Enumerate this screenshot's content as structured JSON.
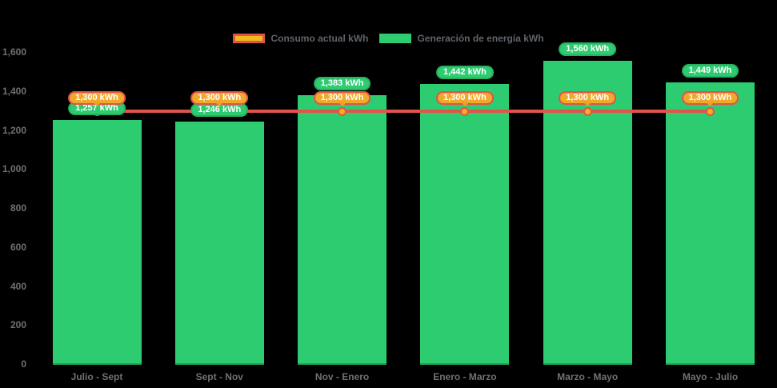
{
  "chart_data": {
    "type": "bar",
    "title": "",
    "categories": [
      "Julio - Sept",
      "Sept - Nov",
      "Nov - Enero",
      "Enero - Marzo",
      "Marzo - Mayo",
      "Mayo - Julio"
    ],
    "series": [
      {
        "name": "Consumo actual kWh",
        "type": "line",
        "values": [
          1300,
          1300,
          1300,
          1300,
          1300,
          1300
        ],
        "point_labels": [
          "1,300 kWh",
          "1,300 kWh",
          "1,300 kWh",
          "1,300 kWh",
          "1,300 kWh",
          "1,300 kWh"
        ],
        "line_color": "#e2544b",
        "point_fill": "#f2b01e",
        "label_bg": "#f0a92a",
        "label_border": "#e0534a",
        "legend_fill": "#eebb1d"
      },
      {
        "name": "Generación de energía kWh",
        "type": "bar",
        "values": [
          1257,
          1246,
          1383,
          1442,
          1560,
          1449
        ],
        "point_labels": [
          "1,257 kWh",
          "1,246 kWh",
          "1,383 kWh",
          "1,442 kWh",
          "1,560 kWh",
          "1,449 kWh"
        ],
        "bar_color": "#2ecc71",
        "bar_edge": "#1fa35a",
        "label_bg": "#2ecc71",
        "label_border": "#27b060"
      }
    ],
    "ylim": [
      0,
      1600
    ],
    "y_ticks": [
      {
        "value": 0,
        "label": "0"
      },
      {
        "value": 200,
        "label": "200"
      },
      {
        "value": 400,
        "label": "400"
      },
      {
        "value": 600,
        "label": "600"
      },
      {
        "value": 800,
        "label": "800"
      },
      {
        "value": 1000,
        "label": "1,000"
      },
      {
        "value": 1200,
        "label": "1,200"
      },
      {
        "value": 1400,
        "label": "1,400"
      },
      {
        "value": 1600,
        "label": "1,600"
      }
    ],
    "legend_position": "top",
    "grid": false,
    "background": "#000000",
    "axis_text_color": "#6e7174"
  }
}
